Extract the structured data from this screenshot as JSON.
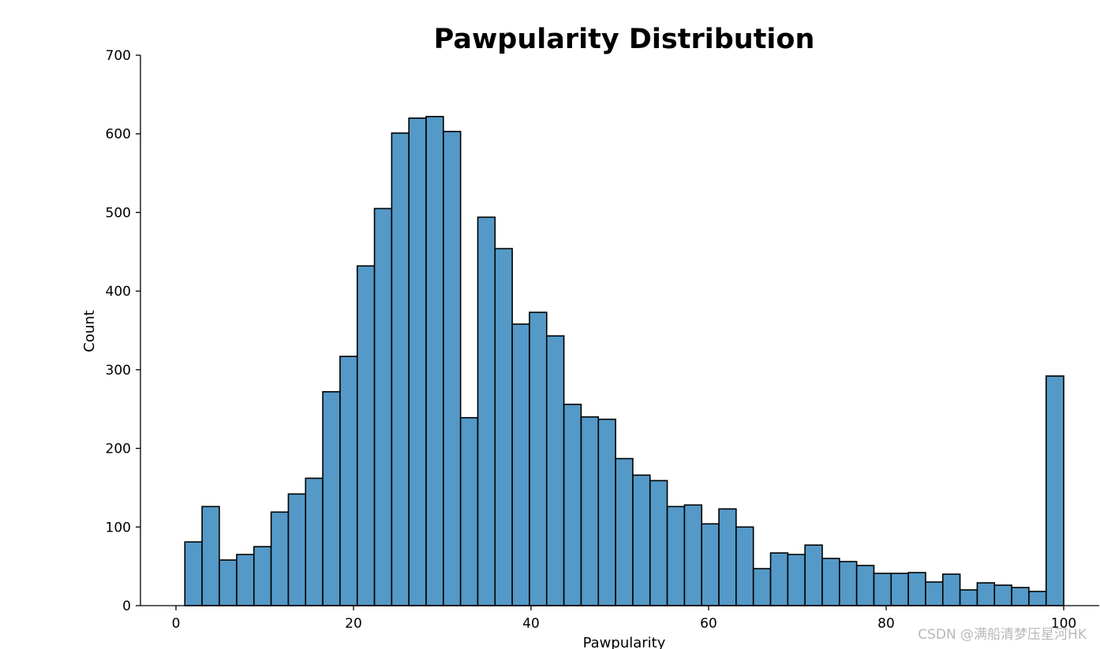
{
  "chart_data": {
    "type": "bar",
    "title": "Pawpularity Distribution",
    "xlabel": "Pawpularity",
    "ylabel": "Count",
    "xlim": [
      -4,
      104
    ],
    "ylim": [
      0,
      700
    ],
    "x_ticks": [
      0,
      20,
      40,
      60,
      80,
      100
    ],
    "y_ticks": [
      0,
      100,
      200,
      300,
      400,
      500,
      600,
      700
    ],
    "grid": false,
    "bar_color": "#5499c7",
    "edge_color": "#000000",
    "bin_edges": [
      1,
      2.94,
      4.88,
      6.84,
      8.78,
      10.72,
      12.66,
      14.6,
      16.54,
      18.48,
      20.42,
      22.36,
      24.3,
      26.24,
      28.18,
      30.12,
      32.06,
      34,
      35.94,
      37.88,
      39.82,
      41.76,
      43.7,
      45.64,
      47.58,
      49.52,
      51.46,
      53.4,
      55.34,
      57.28,
      59.22,
      61.16,
      63.1,
      65.04,
      66.98,
      68.92,
      70.86,
      72.8,
      74.74,
      76.68,
      78.62,
      80.56,
      82.5,
      84.44,
      86.38,
      88.32,
      90.26,
      92.2,
      94.14,
      96.08,
      98.02,
      100
    ],
    "counts": [
      81,
      126,
      58,
      65,
      75,
      119,
      142,
      162,
      272,
      317,
      432,
      505,
      601,
      620,
      622,
      603,
      239,
      494,
      454,
      358,
      373,
      343,
      256,
      240,
      237,
      187,
      166,
      159,
      126,
      128,
      104,
      123,
      100,
      47,
      67,
      65,
      77,
      60,
      56,
      51,
      41,
      41,
      42,
      30,
      40,
      20,
      29,
      26,
      23,
      18,
      292
    ]
  },
  "watermark": "CSDN @满船清梦压星河HK"
}
